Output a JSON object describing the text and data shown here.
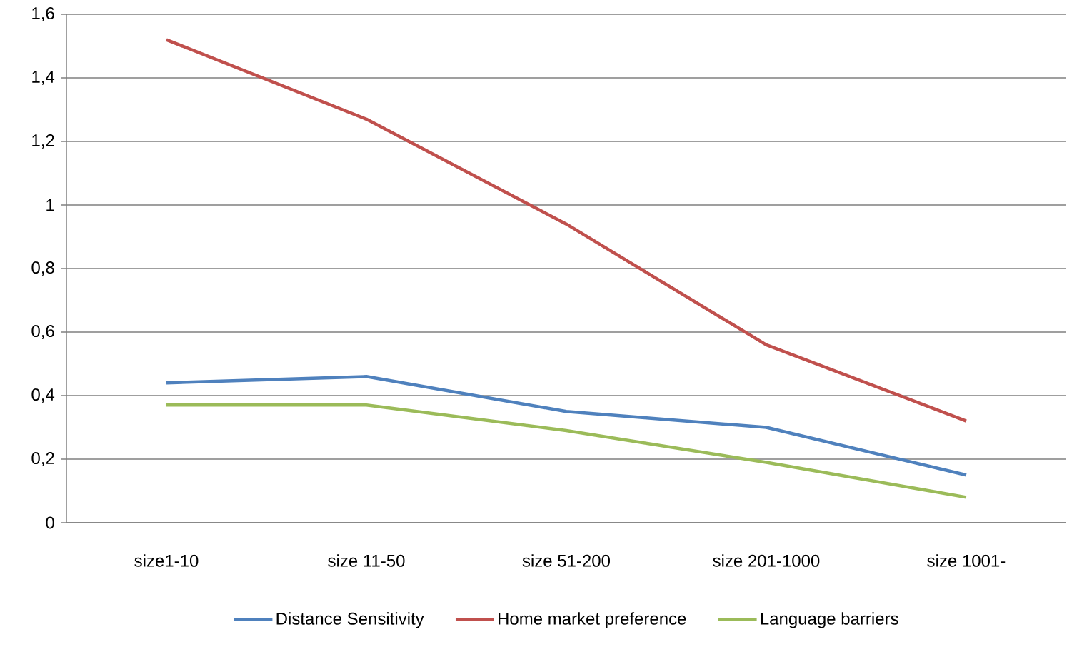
{
  "chart_data": {
    "type": "line",
    "categories": [
      "size1-10",
      "size 11-50",
      "size 51-200",
      "size 201-1000",
      "size 1001-"
    ],
    "series": [
      {
        "name": "Distance Sensitivity",
        "color": "#4f81bd",
        "values": [
          0.44,
          0.46,
          0.35,
          0.3,
          0.15
        ]
      },
      {
        "name": "Home market preference",
        "color": "#c0504d",
        "values": [
          1.52,
          1.27,
          0.94,
          0.56,
          0.32
        ]
      },
      {
        "name": "Language barriers",
        "color": "#9bbb59",
        "values": [
          0.37,
          0.37,
          0.29,
          0.19,
          0.08
        ]
      }
    ],
    "ylim": [
      0,
      1.6
    ],
    "yticks": [
      0,
      {
        "value": 0.2,
        "label": "0,2"
      },
      {
        "value": 0.4,
        "label": "0,4"
      },
      {
        "value": 0.6,
        "label": "0,6"
      },
      {
        "value": 0.8,
        "label": "0,8"
      },
      1,
      {
        "value": 1.2,
        "label": "1,2"
      },
      {
        "value": 1.4,
        "label": "1,4"
      },
      {
        "value": 1.6,
        "label": "1,6"
      }
    ],
    "grid": "y",
    "legend": "bottom",
    "marker": "none",
    "line_style": "solid"
  }
}
